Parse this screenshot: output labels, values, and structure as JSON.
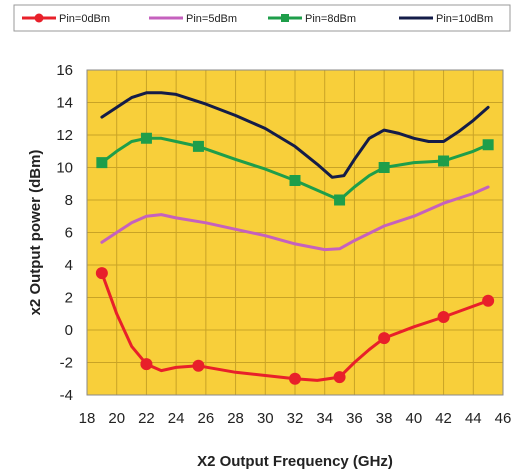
{
  "chart_data": {
    "type": "line",
    "xlabel": "X2 Output Frequency (GHz)",
    "ylabel": "x2 Output power (dBm)",
    "xlim": [
      18,
      46
    ],
    "ylim": [
      -4,
      16
    ],
    "x_ticks": [
      18,
      20,
      22,
      24,
      26,
      28,
      30,
      32,
      34,
      36,
      38,
      40,
      42,
      44,
      46
    ],
    "y_ticks": [
      -4,
      -2,
      0,
      2,
      4,
      6,
      8,
      10,
      12,
      14,
      16
    ],
    "grid": true,
    "legend_position": "top",
    "background_color": "#f8cf3a",
    "series": [
      {
        "name": "Pin=0dBm",
        "color": "#e8202a",
        "marker": "circle",
        "points": [
          [
            19,
            3.5
          ],
          [
            20,
            1.0
          ],
          [
            21,
            -1.0
          ],
          [
            22,
            -2.1
          ],
          [
            23,
            -2.5
          ],
          [
            24,
            -2.3
          ],
          [
            25.5,
            -2.2
          ],
          [
            28,
            -2.6
          ],
          [
            30,
            -2.8
          ],
          [
            32,
            -3.0
          ],
          [
            33.5,
            -3.1
          ],
          [
            35,
            -2.9
          ],
          [
            36,
            -2.0
          ],
          [
            37,
            -1.2
          ],
          [
            38,
            -0.5
          ],
          [
            40,
            0.2
          ],
          [
            42,
            0.8
          ],
          [
            43.5,
            1.3
          ],
          [
            45,
            1.8
          ]
        ],
        "markers": [
          [
            19,
            3.5
          ],
          [
            22,
            -2.1
          ],
          [
            25.5,
            -2.2
          ],
          [
            32,
            -3.0
          ],
          [
            35,
            -2.9
          ],
          [
            38,
            -0.5
          ],
          [
            42,
            0.8
          ],
          [
            45,
            1.8
          ]
        ]
      },
      {
        "name": "Pin=5dBm",
        "color": "#c561be",
        "marker": "none",
        "points": [
          [
            19,
            5.4
          ],
          [
            20,
            6.0
          ],
          [
            21,
            6.6
          ],
          [
            22,
            7.0
          ],
          [
            23,
            7.1
          ],
          [
            24,
            6.9
          ],
          [
            26,
            6.6
          ],
          [
            28,
            6.2
          ],
          [
            30,
            5.8
          ],
          [
            32,
            5.3
          ],
          [
            34,
            4.95
          ],
          [
            35,
            5.0
          ],
          [
            36,
            5.5
          ],
          [
            38,
            6.4
          ],
          [
            40,
            7.0
          ],
          [
            42,
            7.8
          ],
          [
            44,
            8.4
          ],
          [
            45,
            8.8
          ]
        ],
        "markers": []
      },
      {
        "name": "Pin=8dBm",
        "color": "#1e9e4a",
        "marker": "square",
        "points": [
          [
            19,
            10.3
          ],
          [
            20,
            11.0
          ],
          [
            21,
            11.6
          ],
          [
            22,
            11.8
          ],
          [
            23,
            11.8
          ],
          [
            24,
            11.6
          ],
          [
            25.5,
            11.3
          ],
          [
            28,
            10.5
          ],
          [
            30,
            9.9
          ],
          [
            32,
            9.2
          ],
          [
            33.5,
            8.6
          ],
          [
            35,
            8.0
          ],
          [
            36,
            8.8
          ],
          [
            37,
            9.5
          ],
          [
            38,
            10.0
          ],
          [
            40,
            10.3
          ],
          [
            42,
            10.4
          ],
          [
            44,
            11.0
          ],
          [
            45,
            11.4
          ]
        ],
        "markers": [
          [
            19,
            10.3
          ],
          [
            22,
            11.8
          ],
          [
            25.5,
            11.3
          ],
          [
            32,
            9.2
          ],
          [
            35,
            8.0
          ],
          [
            38,
            10.0
          ],
          [
            42,
            10.4
          ],
          [
            45,
            11.4
          ]
        ]
      },
      {
        "name": "Pin=10dBm",
        "color": "#141c48",
        "marker": "none",
        "points": [
          [
            19,
            13.1
          ],
          [
            20,
            13.7
          ],
          [
            21,
            14.3
          ],
          [
            22,
            14.6
          ],
          [
            23,
            14.6
          ],
          [
            24,
            14.5
          ],
          [
            26,
            13.9
          ],
          [
            28,
            13.2
          ],
          [
            30,
            12.4
          ],
          [
            32,
            11.3
          ],
          [
            33.5,
            10.2
          ],
          [
            34.5,
            9.4
          ],
          [
            35.3,
            9.5
          ],
          [
            36,
            10.5
          ],
          [
            37,
            11.8
          ],
          [
            38,
            12.3
          ],
          [
            39,
            12.1
          ],
          [
            40,
            11.8
          ],
          [
            41,
            11.6
          ],
          [
            42,
            11.6
          ],
          [
            43,
            12.2
          ],
          [
            44,
            12.9
          ],
          [
            45,
            13.7
          ]
        ],
        "markers": []
      }
    ]
  }
}
